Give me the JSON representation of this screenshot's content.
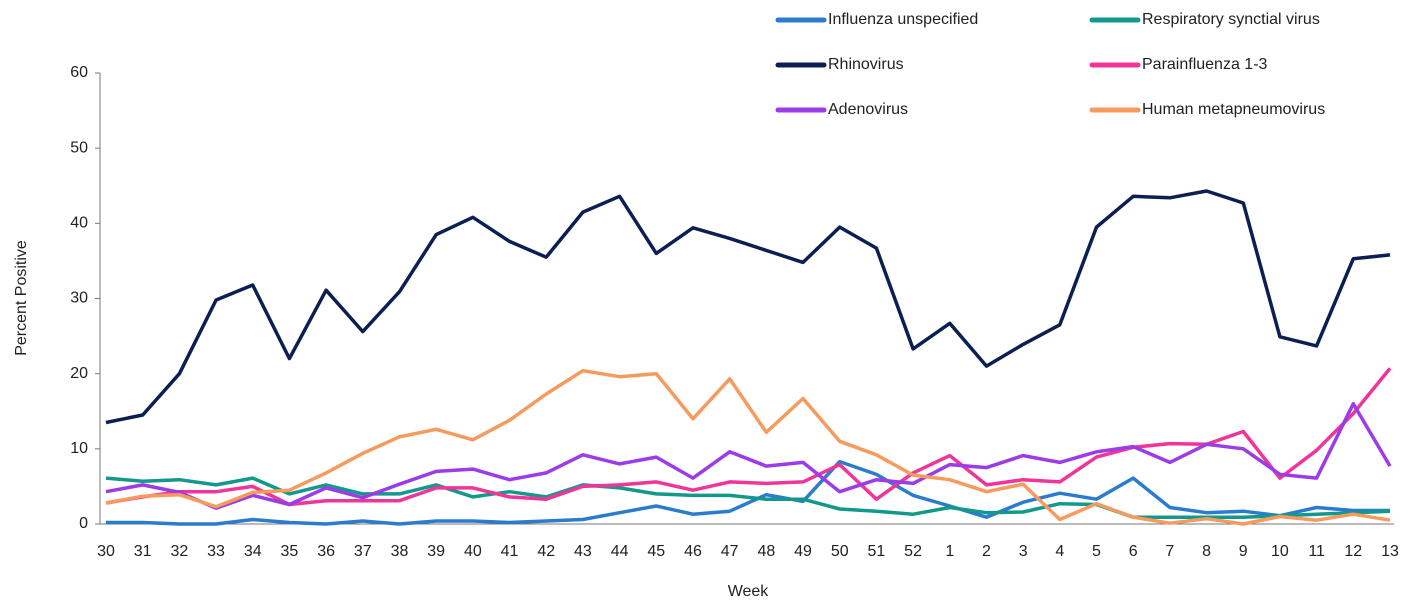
{
  "chart_data": {
    "type": "line",
    "x_label": "Week",
    "y_label": "Percent Positive",
    "categories": [
      "30",
      "31",
      "32",
      "33",
      "34",
      "35",
      "36",
      "37",
      "38",
      "39",
      "40",
      "41",
      "42",
      "43",
      "44",
      "45",
      "46",
      "47",
      "48",
      "49",
      "50",
      "51",
      "52",
      "1",
      "2",
      "3",
      "4",
      "5",
      "6",
      "7",
      "8",
      "9",
      "10",
      "11",
      "12",
      "13"
    ],
    "ylim": [
      0,
      60
    ],
    "yticks": [
      0,
      10,
      20,
      30,
      40,
      50,
      60
    ],
    "grid": false,
    "legend": "top-right",
    "series": [
      {
        "name": "Influenza unspecified",
        "color": "#2b7bcf",
        "values": [
          0.2,
          0.2,
          0,
          0,
          0.6,
          0.2,
          0,
          0.4,
          0,
          0.4,
          0.4,
          0.2,
          0.4,
          0.6,
          1.5,
          2.4,
          1.3,
          1.7,
          3.9,
          3,
          8.3,
          6.6,
          3.8,
          2.4,
          0.9,
          2.9,
          4.1,
          3.3,
          6.1,
          2.2,
          1.5,
          1.7,
          1.1,
          2.2,
          1.8,
          1.8
        ]
      },
      {
        "name": "Respiratory synctial virus",
        "color": "#12998c",
        "values": [
          6.1,
          5.7,
          5.9,
          5.2,
          6.1,
          4,
          5.2,
          4,
          4,
          5.2,
          3.6,
          4.3,
          3.6,
          5.2,
          4.8,
          4,
          3.8,
          3.8,
          3.3,
          3.3,
          2,
          1.7,
          1.3,
          2.2,
          1.5,
          1.6,
          2.7,
          2.6,
          0.9,
          0.9,
          0.9,
          0.9,
          1.1,
          1.3,
          1.5,
          1.7
        ]
      },
      {
        "name": "Rhinovirus",
        "color": "#0c1f52",
        "values": [
          13.5,
          14.5,
          20,
          29.8,
          31.8,
          22,
          31.1,
          25.6,
          30.9,
          38.5,
          40.8,
          37.6,
          35.5,
          41.5,
          43.6,
          36,
          39.4,
          38,
          36.4,
          34.8,
          39.5,
          36.7,
          23.3,
          26.7,
          21,
          23.9,
          26.5,
          39.5,
          43.6,
          43.4,
          44.3,
          42.7,
          24.9,
          23.7,
          35.3,
          35.8
        ]
      },
      {
        "name": "Parainfluenza 1-3",
        "color": "#f0359a",
        "values": [
          2.8,
          3.6,
          4.3,
          4.3,
          5,
          2.6,
          3.1,
          3.1,
          3.1,
          4.8,
          4.8,
          3.6,
          3.3,
          5,
          5.2,
          5.6,
          4.5,
          5.6,
          5.4,
          5.6,
          7.9,
          3.3,
          6.8,
          9.1,
          5.2,
          5.9,
          5.6,
          8.9,
          10.2,
          10.7,
          10.6,
          12.3,
          6.1,
          9.8,
          14.7,
          20.7
        ]
      },
      {
        "name": "Adenovirus",
        "color": "#9b3ce8",
        "values": [
          4.3,
          5.2,
          4.2,
          2.1,
          3.8,
          2.6,
          4.8,
          3.5,
          5.3,
          7,
          7.3,
          5.9,
          6.8,
          9.2,
          8,
          8.9,
          6.1,
          9.6,
          7.7,
          8.2,
          4.3,
          5.9,
          5.4,
          7.9,
          7.5,
          9.1,
          8.2,
          9.6,
          10.3,
          8.2,
          10.6,
          10,
          6.6,
          6.1,
          16,
          7.7
        ]
      },
      {
        "name": "Human metapneumovirus",
        "color": "#f79a5e",
        "values": [
          2.8,
          3.7,
          3.9,
          2.3,
          4.2,
          4.5,
          6.8,
          9.4,
          11.6,
          12.6,
          11.2,
          13.8,
          17.3,
          20.4,
          19.6,
          20,
          14,
          19.3,
          12.2,
          16.7,
          11,
          9.2,
          6.5,
          5.9,
          4.3,
          5.3,
          0.6,
          2.7,
          0.9,
          0.1,
          0.7,
          0,
          1,
          0.5,
          1.3,
          0.5
        ]
      }
    ]
  }
}
